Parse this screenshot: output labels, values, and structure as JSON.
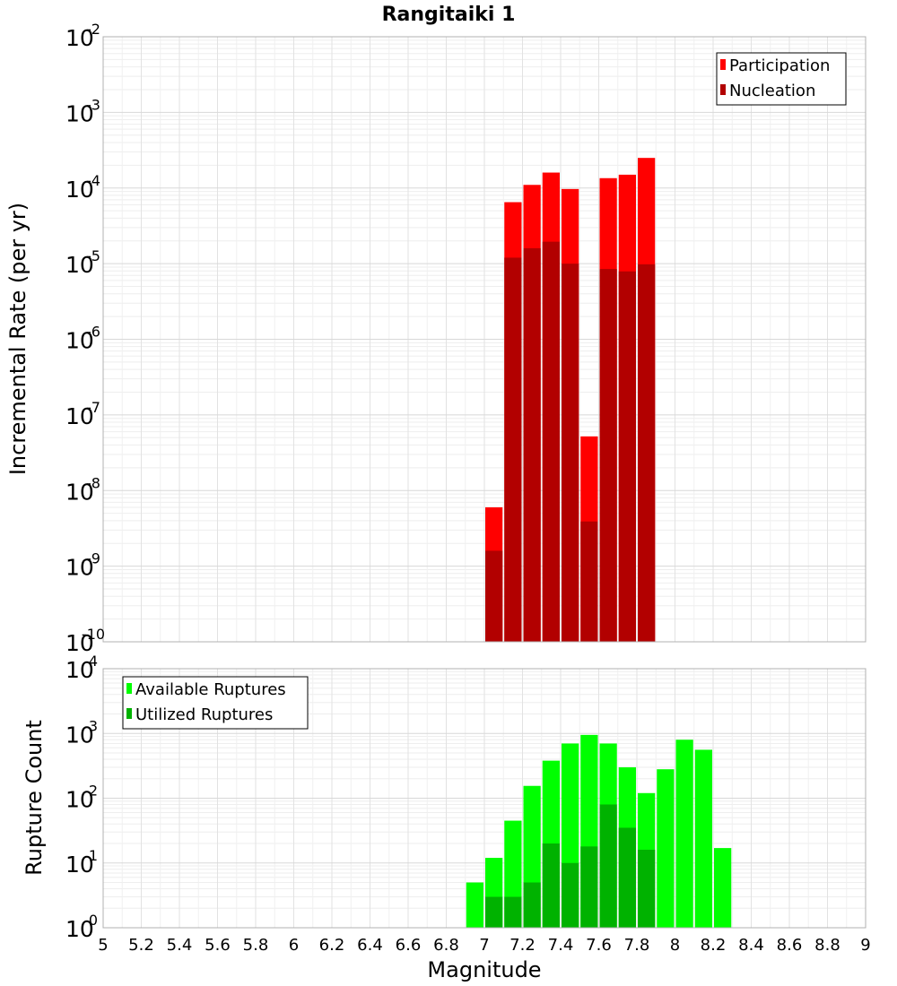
{
  "chart_data": [
    {
      "type": "bar",
      "title": "Rangitaiki 1",
      "xlabel": "",
      "ylabel": "Incremental Rate (per yr)",
      "yscale": "log",
      "xlim": [
        5,
        9
      ],
      "ylim_exp": [
        -10,
        -2
      ],
      "bin_width": 0.1,
      "legend_position": "top-right",
      "series": [
        {
          "name": "Participation",
          "color": "#ff0000",
          "x": [
            7.05,
            7.15,
            7.25,
            7.35,
            7.45,
            7.55,
            7.65,
            7.75,
            7.85
          ],
          "values": [
            6e-09,
            6.5e-05,
            0.00011,
            0.00016,
            9.7e-05,
            5.2e-08,
            0.000135,
            0.00015,
            0.00025
          ]
        },
        {
          "name": "Nucleation",
          "color": "#b20000",
          "x": [
            7.05,
            7.15,
            7.25,
            7.35,
            7.45,
            7.55,
            7.65,
            7.75,
            7.85
          ],
          "values": [
            1.6e-09,
            1.2e-05,
            1.6e-05,
            1.95e-05,
            1e-05,
            3.9e-09,
            8.5e-06,
            7.9e-06,
            9.8e-06
          ]
        }
      ]
    },
    {
      "type": "bar",
      "title": "",
      "xlabel": "Magnitude",
      "ylabel": "Rupture Count",
      "yscale": "log",
      "xlim": [
        5,
        9
      ],
      "ylim_exp": [
        0,
        4
      ],
      "bin_width": 0.1,
      "legend_position": "top-left",
      "series": [
        {
          "name": "Available Ruptures",
          "color": "#00ff00",
          "x": [
            6.45,
            6.75,
            6.85,
            6.95,
            7.05,
            7.15,
            7.25,
            7.35,
            7.45,
            7.55,
            7.65,
            7.75,
            7.85,
            7.95,
            8.05,
            8.15,
            8.25
          ],
          "values": [
            1,
            1,
            1,
            5,
            12,
            45,
            155,
            380,
            700,
            950,
            700,
            300,
            120,
            280,
            800,
            560,
            17
          ]
        },
        {
          "name": "Utilized Ruptures",
          "color": "#00b200",
          "x": [
            7.05,
            7.15,
            7.25,
            7.35,
            7.45,
            7.55,
            7.65,
            7.75,
            7.85
          ],
          "values": [
            3,
            3,
            5,
            20,
            10,
            18,
            80,
            35,
            16
          ]
        }
      ]
    }
  ],
  "x_tick_labels": [
    "5",
    "5.2",
    "5.4",
    "5.6",
    "5.8",
    "6",
    "6.2",
    "6.4",
    "6.6",
    "6.8",
    "7",
    "7.2",
    "7.4",
    "7.6",
    "7.8",
    "8",
    "8.2",
    "8.4",
    "8.6",
    "8.8",
    "9"
  ]
}
